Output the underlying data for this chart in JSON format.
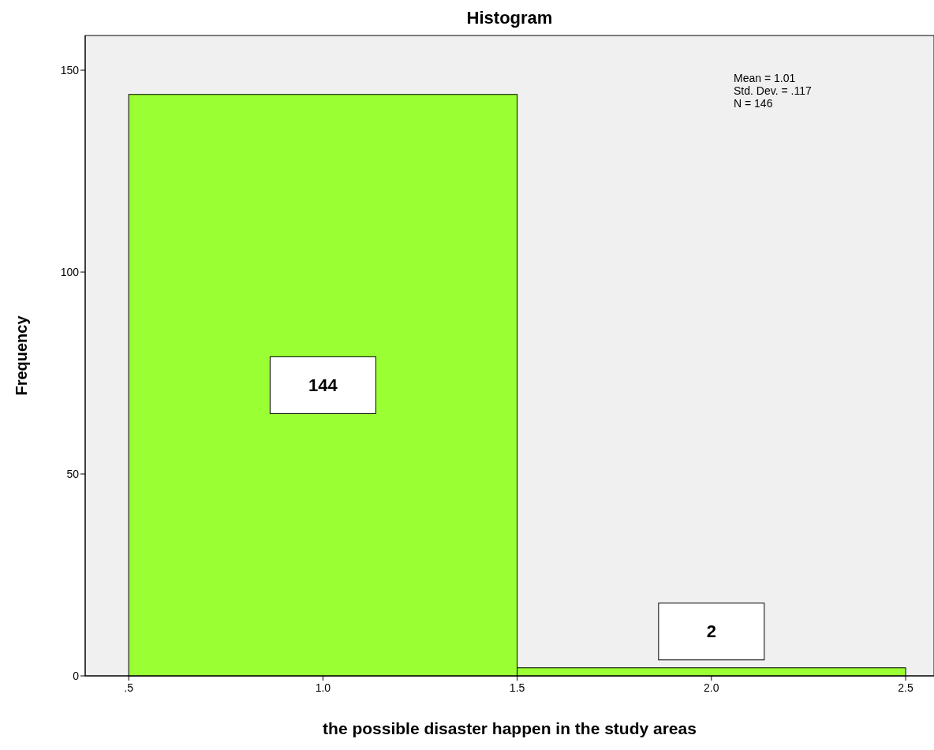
{
  "chart_data": {
    "type": "histogram",
    "title": "Histogram",
    "xlabel": "the possible disaster happen in the study areas",
    "ylabel": "Frequency",
    "bins": [
      0.5,
      1.5,
      2.5
    ],
    "values": [
      144,
      2
    ],
    "color": "#9aff33",
    "xlim": [
      0.388,
      2.573
    ],
    "xticks": [
      {
        "value": 0.5,
        "label": ".5"
      },
      {
        "value": 1,
        "label": "1.0"
      },
      {
        "value": 1.5,
        "label": "1.5"
      },
      {
        "value": 2,
        "label": "2.0"
      },
      {
        "value": 2.5,
        "label": "2.5"
      }
    ],
    "ylim": [
      0,
      158.6
    ],
    "yticks": [
      0,
      50,
      100,
      150
    ],
    "data_labels": true,
    "grid": false,
    "annotations": [
      "Mean = 1.01",
      "Std. Dev. = .117",
      "N = 146"
    ]
  }
}
